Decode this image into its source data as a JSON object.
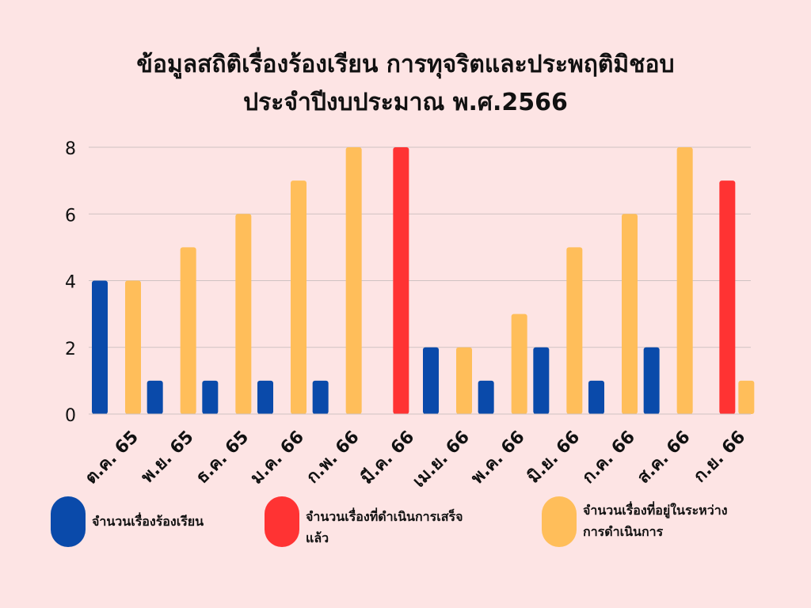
{
  "title": {
    "line1": "ข้อมูลสถิติเรื่องร้องเรียน การทุจริตและประพฤติมิชอบ",
    "line2": "ประจำปีงบประมาณ พ.ศ.2566"
  },
  "colors": {
    "complaints": "#0a4aaa",
    "completed": "#ff3333",
    "in_progress": "#ffbe5a",
    "background": "#fde4e4",
    "gridline": "#cfc2c2"
  },
  "chart_data": {
    "type": "bar",
    "categories": [
      "ต.ค. 65",
      "พ.ย. 65",
      "ธ.ค. 65",
      "ม.ค. 66",
      "ก.พ. 66",
      "มี.ค. 66",
      "เม.ย. 66",
      "พ.ค. 66",
      "มิ.ย. 66",
      "ก.ค. 66",
      "ส.ค. 66",
      "ก.ย. 66"
    ],
    "series": [
      {
        "name": "จำนวนเรื่องร้องเรียน",
        "color": "#0a4aaa",
        "values": [
          4,
          1,
          1,
          1,
          1,
          0,
          2,
          1,
          2,
          1,
          2,
          0
        ]
      },
      {
        "name": "จำนวนเรื่องที่ดำเนินการเสร็จแล้ว",
        "color": "#ff3333",
        "values": [
          0,
          0,
          0,
          0,
          0,
          8,
          0,
          0,
          0,
          0,
          0,
          7
        ]
      },
      {
        "name": "จำนวนเรื่องที่อยู่ในระหว่างการดำเนินการ",
        "color": "#ffbe5a",
        "values": [
          4,
          5,
          6,
          7,
          8,
          0,
          2,
          3,
          5,
          6,
          8,
          1
        ]
      }
    ],
    "yticks": [
      0,
      2,
      4,
      6,
      8
    ],
    "ylim": [
      0,
      8
    ],
    "grid": true,
    "legend": "bottom"
  },
  "legend": [
    {
      "line1": "จำนวนเรื่องร้องเรียน",
      "line2": ""
    },
    {
      "line1": "จำนวนเรื่องที่ดำเนินการเสร็จ",
      "line2": "แล้ว"
    },
    {
      "line1": "จำนวนเรื่องที่อยู่ในระหว่าง",
      "line2": "การดำเนินการ"
    }
  ]
}
